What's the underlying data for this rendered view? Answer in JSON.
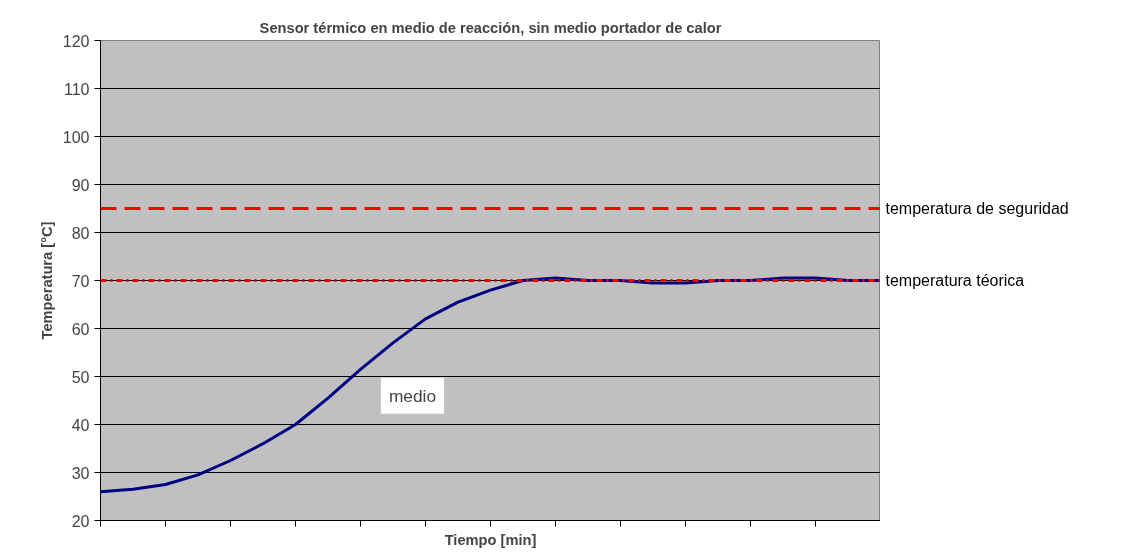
{
  "chart_data": {
    "type": "line",
    "title": "Sensor térmico en medio de reacción, sin medio portador de calor",
    "xlabel": "Tiempo [min]",
    "ylabel": "Temperatura [°C]",
    "categories": [
      null,
      null,
      null,
      null,
      null,
      null,
      null,
      null,
      null,
      null,
      null,
      null,
      null,
      null,
      null,
      null,
      null,
      null,
      null,
      null,
      null,
      null,
      null,
      null,
      null
    ],
    "series": [
      {
        "color": "#000080",
        "values": [
          26,
          26.5,
          27.5,
          29.5,
          32.5,
          36,
          40,
          45.5,
          51.5,
          57,
          62,
          65.5,
          68,
          70,
          70.5,
          70,
          70,
          69.5,
          69.5,
          70,
          70,
          70.5,
          70.5,
          70,
          70
        ]
      }
    ],
    "ylim": [
      20,
      120
    ],
    "yticks": [
      20,
      30,
      40,
      50,
      60,
      70,
      80,
      90,
      100,
      110,
      120
    ],
    "ref_lines": [
      {
        "axis": "y",
        "value": 85,
        "label": "temperatura de seguridad",
        "color": "#ff0000",
        "line_style": "dashed"
      },
      {
        "axis": "y",
        "value": 70,
        "label": "temperatura téorica",
        "color": "#ff0000",
        "line_style": "dashdot"
      }
    ],
    "annotations": [
      "medio"
    ],
    "grid": "y",
    "line_style": "solid"
  }
}
